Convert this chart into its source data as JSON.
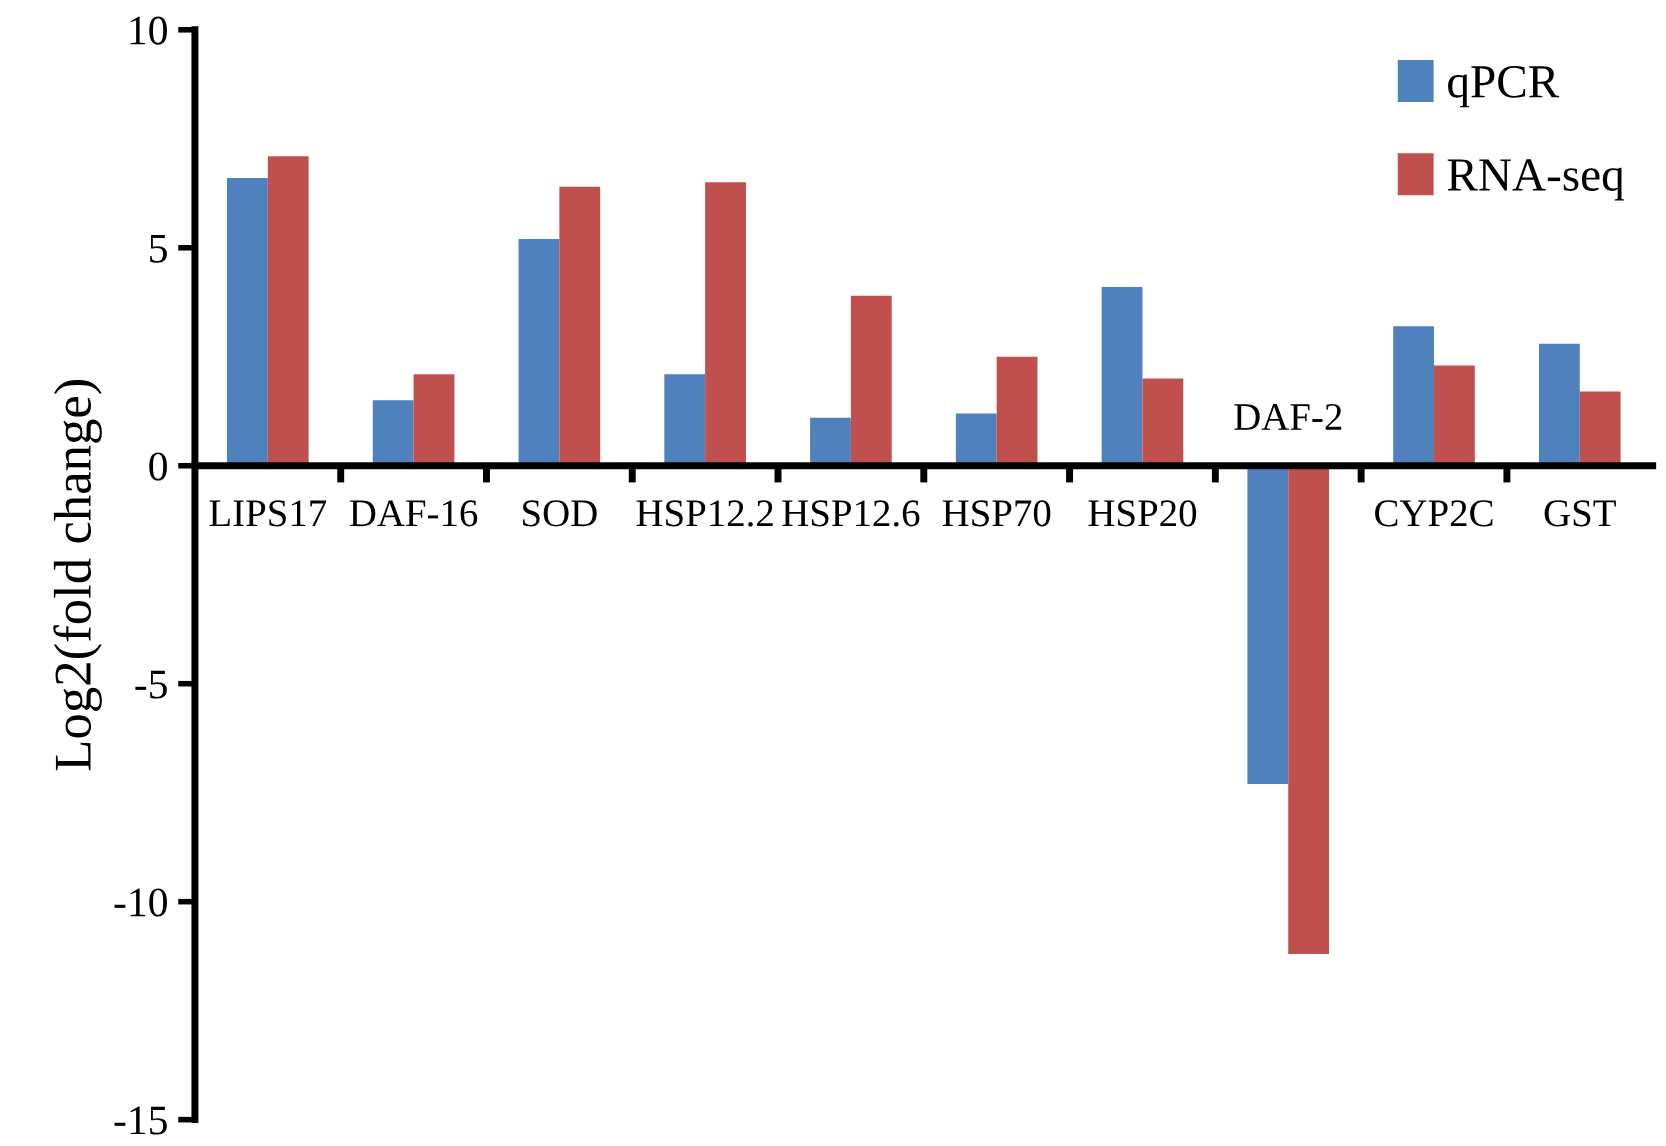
{
  "chart_data": {
    "type": "bar",
    "ylabel": "Log2(fold change)",
    "categories": [
      "LIPS17",
      "DAF-16",
      "SOD",
      "HSP12.2",
      "HSP12.6",
      "HSP70",
      "HSP20",
      "DAF-2",
      "CYP2C",
      "GST"
    ],
    "series": [
      {
        "name": "qPCR",
        "color": "#4f81bd",
        "values": [
          6.6,
          1.5,
          5.2,
          2.1,
          1.1,
          1.2,
          4.1,
          -7.3,
          3.2,
          2.8
        ]
      },
      {
        "name": "RNA-seq",
        "color": "#c0504d",
        "values": [
          7.1,
          2.1,
          6.4,
          6.5,
          3.9,
          2.5,
          2.0,
          -11.2,
          2.3,
          1.7
        ]
      }
    ],
    "ylim": [
      -15,
      10
    ],
    "yticks": [
      -15,
      -10,
      -5,
      0,
      5,
      10
    ],
    "grid": false,
    "legend": "top right"
  }
}
